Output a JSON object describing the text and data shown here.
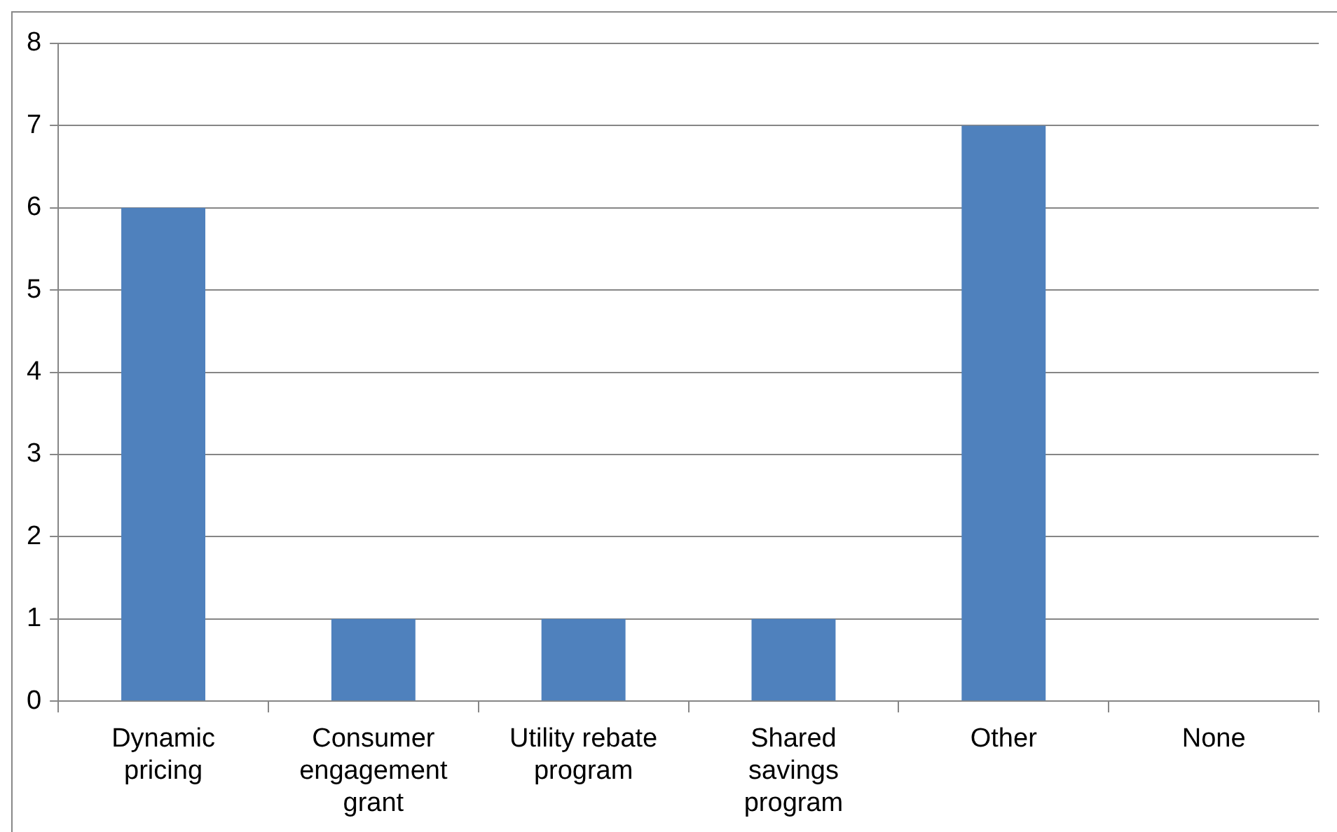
{
  "chart_data": {
    "type": "bar",
    "categories": [
      "Dynamic pricing",
      "Consumer engagement grant",
      "Utility rebate program",
      "Shared savings program",
      "Other",
      "None"
    ],
    "values": [
      6,
      1,
      1,
      1,
      7,
      0
    ],
    "color": "#4f81bd",
    "ylim": [
      0,
      8
    ],
    "yticks": [
      0,
      1,
      2,
      3,
      4,
      5,
      6,
      7,
      8
    ],
    "grid": "y",
    "legend": false
  }
}
